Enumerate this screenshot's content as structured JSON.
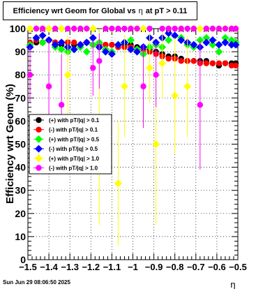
{
  "chart_data": {
    "type": "scatter",
    "title_prefix": "Efficiency wrt Geom for Global vs",
    "title_symbol": "η",
    "title_suffix": "at pT > 0.11",
    "xlabel": "η",
    "ylabel": "Efficiency wrt Geom (%)",
    "xlim": [
      -1.5,
      -0.5
    ],
    "ylim": [
      0,
      100
    ],
    "grid": true,
    "legend_position": "top-left",
    "xticks": [
      -1.5,
      -1.4,
      -1.3,
      -1.2,
      -1.1,
      -1,
      -0.9,
      -0.8,
      -0.7,
      -0.6,
      -0.5
    ],
    "xtick_labels": [
      "−1.5",
      "−1.4",
      "−1.3",
      "−1.2",
      "−1.1",
      "−1",
      "−0.9",
      "−0.8",
      "−0.7",
      "−0.6",
      "−0.5"
    ],
    "yticks": [
      0,
      10,
      20,
      30,
      40,
      50,
      60,
      70,
      80,
      90,
      100
    ],
    "series": [
      {
        "name": "(+) with pT/|q| > 0.1",
        "color": "#000000",
        "marker": "circle",
        "x": [
          -1.49,
          -1.46,
          -1.43,
          -1.4,
          -1.37,
          -1.34,
          -1.31,
          -1.28,
          -1.25,
          -1.22,
          -1.19,
          -1.16,
          -1.13,
          -1.1,
          -1.07,
          -1.04,
          -1.01,
          -0.98,
          -0.95,
          -0.92,
          -0.89,
          -0.86,
          -0.83,
          -0.8,
          -0.77,
          -0.74,
          -0.71,
          -0.68,
          -0.65,
          -0.62,
          -0.59,
          -0.56,
          -0.53,
          -0.51
        ],
        "y": [
          93,
          94,
          94,
          95,
          94,
          93,
          94,
          93,
          93,
          94,
          93,
          92,
          93,
          93,
          92,
          93,
          93,
          92,
          92,
          91,
          90,
          89,
          88,
          88,
          87,
          86,
          86,
          86,
          86,
          85,
          84,
          85,
          85,
          85
        ]
      },
      {
        "name": "(-) with pT/|q| > 0.1",
        "color": "#ff0000",
        "marker": "circle",
        "x": [
          -1.49,
          -1.46,
          -1.43,
          -1.4,
          -1.37,
          -1.34,
          -1.31,
          -1.28,
          -1.25,
          -1.22,
          -1.19,
          -1.16,
          -1.13,
          -1.1,
          -1.07,
          -1.04,
          -1.01,
          -0.98,
          -0.95,
          -0.92,
          -0.89,
          -0.86,
          -0.83,
          -0.8,
          -0.77,
          -0.74,
          -0.71,
          -0.68,
          -0.65,
          -0.62,
          -0.59,
          -0.56,
          -0.53,
          -0.51
        ],
        "y": [
          94,
          95,
          94,
          95,
          94,
          94,
          94,
          94,
          93,
          94,
          93,
          93,
          93,
          93,
          92,
          92,
          92,
          91,
          91,
          90,
          89,
          88,
          87,
          87,
          86,
          86,
          86,
          85,
          85,
          85,
          85,
          85,
          84,
          84
        ]
      },
      {
        "name": "(+) with pT/|q| > 0.5",
        "color": "#00ff00",
        "marker": "diamond",
        "x": [
          -1.49,
          -1.46,
          -1.43,
          -1.4,
          -1.37,
          -1.34,
          -1.31,
          -1.28,
          -1.25,
          -1.22,
          -1.19,
          -1.16,
          -1.13,
          -1.1,
          -1.07,
          -1.04,
          -1.01,
          -0.98,
          -0.95,
          -0.92,
          -0.89,
          -0.86,
          -0.83,
          -0.8,
          -0.77,
          -0.74,
          -0.71,
          -0.68,
          -0.65,
          -0.62,
          -0.59,
          -0.56,
          -0.53,
          -0.51
        ],
        "y": [
          93,
          96,
          94,
          95,
          92,
          91,
          90,
          91,
          92,
          90,
          93,
          94,
          91,
          90,
          93,
          94,
          95,
          91,
          89,
          92,
          93,
          92,
          95,
          97,
          96,
          93,
          92,
          95,
          96,
          93,
          90,
          96,
          95,
          94
        ]
      },
      {
        "name": "(-) with pT/|q| > 0.5",
        "color": "#0000ff",
        "marker": "diamond",
        "x": [
          -1.49,
          -1.46,
          -1.43,
          -1.4,
          -1.37,
          -1.34,
          -1.31,
          -1.28,
          -1.25,
          -1.22,
          -1.19,
          -1.16,
          -1.13,
          -1.1,
          -1.07,
          -1.04,
          -1.01,
          -0.98,
          -0.95,
          -0.92,
          -0.89,
          -0.86,
          -0.83,
          -0.8,
          -0.77,
          -0.74,
          -0.71,
          -0.68,
          -0.65,
          -0.62,
          -0.59,
          -0.56,
          -0.53,
          -0.51
        ],
        "y": [
          92,
          96,
          97,
          95,
          93,
          94,
          92,
          91,
          93,
          94,
          96,
          92,
          90,
          89,
          93,
          94,
          91,
          90,
          92,
          96,
          94,
          96,
          98,
          97,
          95,
          94,
          93,
          92,
          94,
          95,
          93,
          94,
          93,
          93
        ]
      },
      {
        "name": "(+) with pT/|q| > 1.0",
        "color": "#ffff00",
        "marker": "diamond",
        "x": [
          -1.49,
          -1.46,
          -1.43,
          -1.4,
          -1.37,
          -1.34,
          -1.31,
          -1.28,
          -1.25,
          -1.22,
          -1.19,
          -1.16,
          -1.13,
          -1.1,
          -1.07,
          -1.04,
          -1.01,
          -0.98,
          -0.95,
          -0.92,
          -0.89,
          -0.86,
          -0.83,
          -0.8,
          -0.77,
          -0.74,
          -0.71,
          -0.68,
          -0.65,
          -0.62,
          -0.59,
          -0.56,
          -0.53,
          -0.51
        ],
        "y": [
          100,
          100,
          100,
          100,
          100,
          100,
          80,
          100,
          100,
          100,
          100,
          60,
          100,
          100,
          33,
          75,
          100,
          100,
          100,
          83,
          50,
          85,
          100,
          71,
          100,
          75,
          100,
          100,
          100,
          100,
          100,
          100,
          100,
          100
        ],
        "yerr": [
          0,
          0,
          0,
          0,
          0,
          0,
          17,
          0,
          0,
          0,
          0,
          45,
          0,
          0,
          27,
          22,
          0,
          0,
          0,
          15,
          35,
          15,
          0,
          25,
          0,
          22,
          0,
          0,
          0,
          0,
          0,
          0,
          0,
          0
        ]
      },
      {
        "name": "(-) with pT/|q| > 1.0",
        "color": "#ff00ff",
        "marker": "circle",
        "x": [
          -1.49,
          -1.46,
          -1.43,
          -1.4,
          -1.37,
          -1.34,
          -1.31,
          -1.28,
          -1.25,
          -1.22,
          -1.19,
          -1.16,
          -1.13,
          -1.1,
          -1.07,
          -1.04,
          -1.01,
          -0.98,
          -0.95,
          -0.92,
          -0.89,
          -0.86,
          -0.83,
          -0.8,
          -0.77,
          -0.74,
          -0.71,
          -0.68,
          -0.65,
          -0.62,
          -0.59,
          -0.56,
          -0.53,
          -0.51
        ],
        "y": [
          80,
          100,
          100,
          75,
          100,
          67,
          100,
          100,
          100,
          100,
          83,
          86,
          100,
          100,
          100,
          100,
          100,
          100,
          75,
          100,
          80,
          100,
          100,
          100,
          100,
          100,
          100,
          67,
          100,
          100,
          100,
          100,
          100,
          100
        ],
        "yerr": [
          12,
          0,
          0,
          20,
          0,
          22,
          0,
          0,
          0,
          0,
          12,
          12,
          0,
          0,
          0,
          0,
          0,
          0,
          18,
          0,
          14,
          0,
          0,
          0,
          0,
          0,
          0,
          28,
          0,
          0,
          0,
          0,
          0,
          0
        ]
      }
    ]
  },
  "footer": {
    "timestamp": "Sun Jun 29 08:06:50 2025"
  }
}
